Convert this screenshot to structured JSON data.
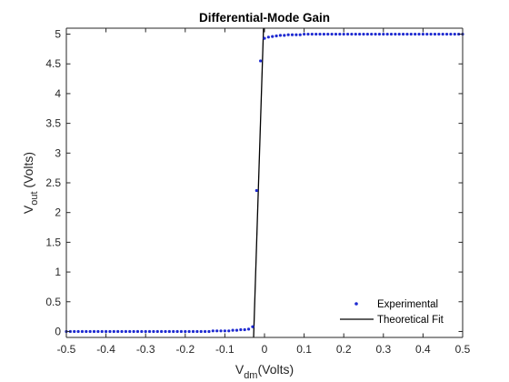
{
  "chart_data": {
    "type": "scatter",
    "title": "Differential-Mode Gain",
    "xlabel": {
      "main": "V",
      "sub": "dm",
      "rest": "(Volts)"
    },
    "ylabel": {
      "main": "V",
      "sub": "out",
      "rest": " (Volts)"
    },
    "xlim": [
      -0.5,
      0.5
    ],
    "ylim": [
      -0.1,
      5.1
    ],
    "xticks": [
      -0.5,
      -0.4,
      -0.3,
      -0.2,
      -0.1,
      0,
      0.1,
      0.2,
      0.3,
      0.4,
      0.5
    ],
    "xtick_labels": [
      "-0.5",
      "-0.4",
      "-0.3",
      "-0.2",
      "-0.1",
      "0",
      "0.1",
      "0.2",
      "0.3",
      "0.4",
      "0.5"
    ],
    "yticks": [
      0,
      0.5,
      1,
      1.5,
      2,
      2.5,
      3,
      3.5,
      4,
      4.5,
      5
    ],
    "ytick_labels": [
      "0",
      "0.5",
      "1",
      "1.5",
      "2",
      "2.5",
      "3",
      "3.5",
      "4",
      "4.5",
      "5"
    ],
    "grid": false,
    "legend_position": "bottom-right",
    "series": [
      {
        "name": "Experimental",
        "kind": "markers",
        "color": "#1f2bd1",
        "x": [
          -0.5,
          -0.49,
          -0.48,
          -0.47,
          -0.46,
          -0.45,
          -0.44,
          -0.43,
          -0.42,
          -0.41,
          -0.4,
          -0.39,
          -0.38,
          -0.37,
          -0.36,
          -0.35,
          -0.34,
          -0.33,
          -0.32,
          -0.31,
          -0.3,
          -0.29,
          -0.28,
          -0.27,
          -0.26,
          -0.25,
          -0.24,
          -0.23,
          -0.22,
          -0.21,
          -0.2,
          -0.19,
          -0.18,
          -0.17,
          -0.16,
          -0.15,
          -0.14,
          -0.13,
          -0.12,
          -0.11,
          -0.1,
          -0.09,
          -0.08,
          -0.07,
          -0.06,
          -0.05,
          -0.04,
          -0.03,
          -0.02,
          -0.01,
          0.0,
          0.01,
          0.02,
          0.03,
          0.04,
          0.05,
          0.06,
          0.07,
          0.08,
          0.09,
          0.1,
          0.11,
          0.12,
          0.13,
          0.14,
          0.15,
          0.16,
          0.17,
          0.18,
          0.19,
          0.2,
          0.21,
          0.22,
          0.23,
          0.24,
          0.25,
          0.26,
          0.27,
          0.28,
          0.29,
          0.3,
          0.31,
          0.32,
          0.33,
          0.34,
          0.35,
          0.36,
          0.37,
          0.38,
          0.39,
          0.4,
          0.41,
          0.42,
          0.43,
          0.44,
          0.45,
          0.46,
          0.47,
          0.48,
          0.49,
          0.5
        ],
        "y": [
          0.0,
          0.0,
          0.0,
          0.0,
          0.0,
          0.0,
          0.0,
          0.0,
          0.0,
          0.0,
          0.0,
          0.0,
          0.0,
          0.0,
          0.0,
          0.0,
          0.0,
          0.0,
          0.0,
          0.0,
          0.0,
          0.0,
          0.0,
          0.0,
          0.0,
          0.0,
          0.0,
          0.0,
          0.0,
          0.0,
          0.0,
          0.0,
          0.0,
          0.0,
          0.0,
          0.0,
          0.0,
          0.01,
          0.01,
          0.01,
          0.01,
          0.01,
          0.02,
          0.02,
          0.03,
          0.03,
          0.04,
          0.08,
          2.37,
          4.55,
          4.93,
          4.95,
          4.96,
          4.97,
          4.98,
          4.98,
          4.99,
          4.99,
          4.99,
          4.99,
          5.0,
          5.0,
          5.0,
          5.0,
          5.0,
          5.0,
          5.0,
          5.0,
          5.0,
          5.0,
          5.0,
          5.0,
          5.0,
          5.0,
          5.0,
          5.0,
          5.0,
          5.0,
          5.0,
          5.0,
          5.0,
          5.0,
          5.0,
          5.0,
          5.0,
          5.0,
          5.0,
          5.0,
          5.0,
          5.0,
          5.0,
          5.0,
          5.0,
          5.0,
          5.0,
          5.0,
          5.0,
          5.0,
          5.0,
          5.0,
          5.0
        ]
      },
      {
        "name": "Theoretical Fit",
        "kind": "line",
        "color": "#000000",
        "x": [
          -0.0275,
          -0.0025
        ],
        "y": [
          -0.1,
          5.1
        ]
      }
    ]
  }
}
